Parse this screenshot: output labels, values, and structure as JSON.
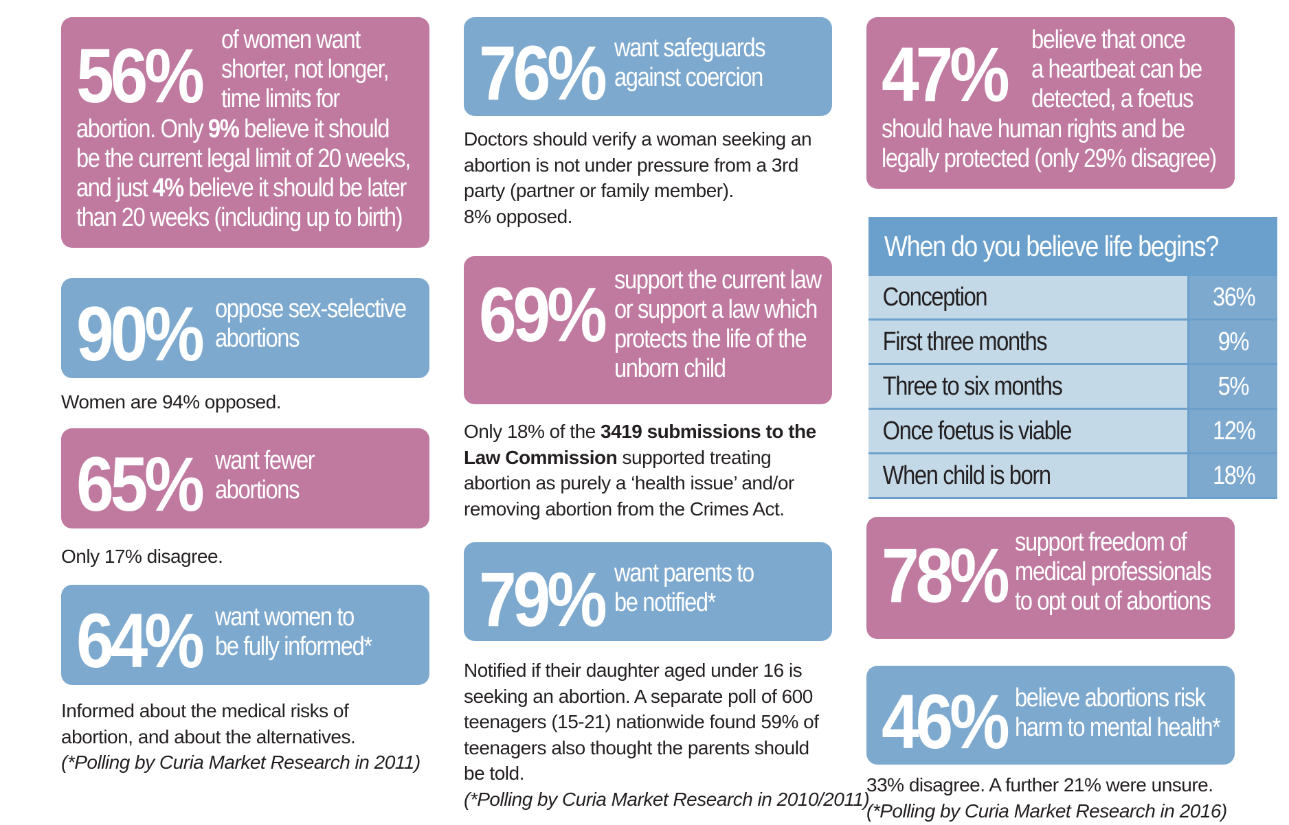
{
  "colors": {
    "pink": "#c0799f",
    "blue": "#7ea9cf",
    "table_header": "#6aa0cb",
    "table_light": "#c3d9e7"
  },
  "stat56": {
    "pct": "56%",
    "lead": [
      "of women want",
      "shorter, not longer,",
      "time limits for"
    ],
    "line1_pre": "abortion. Only ",
    "line1_bold": "9%",
    "line1_post": " believe it should",
    "line2": "be the current legal limit of 20 weeks,",
    "line3_pre": "and just ",
    "line3_bold": "4%",
    "line3_post": " believe it should be later",
    "line4": "than 20 weeks (including up to birth)"
  },
  "stat90": {
    "pct": "90%",
    "lead": [
      "oppose sex-selective",
      "abortions"
    ],
    "caption": "Women are 94% opposed."
  },
  "stat65": {
    "pct": "65%",
    "lead": [
      "want fewer",
      "abortions"
    ],
    "caption": "Only 17% disagree."
  },
  "stat64": {
    "pct": "64%",
    "lead": [
      "want women to",
      "be fully informed*"
    ],
    "caption": [
      "Informed about the medical risks of",
      "abortion, and about the alternatives."
    ],
    "note": "(*Polling by Curia Market Research in 2011)"
  },
  "stat76": {
    "pct": "76%",
    "lead": [
      "want safeguards",
      "against coercion"
    ],
    "caption": [
      "Doctors should verify a woman seeking an",
      "abortion is not under pressure from a 3rd",
      "party (partner or family member).",
      "8% opposed."
    ]
  },
  "stat69": {
    "pct": "69%",
    "lead": [
      "support the current law",
      "or support a law which",
      "protects the life of the",
      "unborn child"
    ],
    "cap1_pre": "Only 18% of the ",
    "cap1_bold": "3419 submissions to the",
    "cap2_bold": "Law Commission",
    "cap2_post": " supported treating",
    "cap3": "abortion as purely a ‘health issue’ and/or",
    "cap4": "removing abortion from the Crimes Act."
  },
  "stat79": {
    "pct": "79%",
    "lead": [
      "want parents to",
      "be notified*"
    ],
    "caption": [
      "Notified if their daughter aged under 16 is",
      "seeking an abortion. A separate poll of 600",
      "teenagers (15-21) nationwide found 59% of",
      "teenagers also thought the parents should",
      "be told."
    ],
    "note": "(*Polling by Curia Market Research in 2010/2011)"
  },
  "stat47": {
    "pct": "47%",
    "lead": [
      "believe that once",
      "a heartbeat can be",
      "detected, a foetus"
    ],
    "tail": [
      "should have human rights and be",
      "legally protected (only 29% disagree)"
    ]
  },
  "life_table": {
    "title": "When do you believe life begins?",
    "rows": [
      {
        "label": "Conception",
        "value": "36%"
      },
      {
        "label": "First three months",
        "value": "9%"
      },
      {
        "label": "Three to six months",
        "value": "5%"
      },
      {
        "label": "Once foetus is viable",
        "value": "12%"
      },
      {
        "label": "When child is born",
        "value": "18%"
      }
    ]
  },
  "stat78": {
    "pct": "78%",
    "lead": [
      "support freedom of",
      "medical professionals",
      "to opt out of abortions"
    ]
  },
  "stat46": {
    "pct": "46%",
    "lead": [
      "believe abortions risk",
      "harm to mental health*"
    ],
    "caption": "33% disagree. A further 21% were unsure.",
    "note": "(*Polling by Curia Market Research in 2016)"
  }
}
